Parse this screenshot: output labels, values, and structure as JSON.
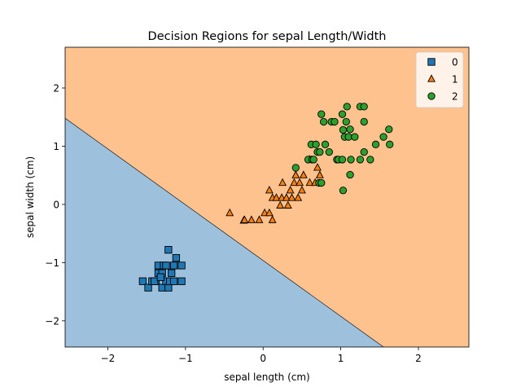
{
  "chart_data": {
    "type": "scatter",
    "title": "Decision Regions for sepal Length/Width",
    "xlabel": "sepal length (cm)",
    "ylabel": "sepal width (cm)",
    "xlim": [
      -2.55,
      2.65
    ],
    "ylim": [
      -2.45,
      2.7
    ],
    "xticks": [
      -2,
      -1,
      0,
      1,
      2
    ],
    "yticks": [
      -2,
      -1,
      0,
      1,
      2
    ],
    "grid": false,
    "legend_position": "top-right",
    "decision_boundary": [
      [
        -2.55,
        1.48
      ],
      [
        1.55,
        -2.45
      ]
    ],
    "regions": [
      {
        "class": "0",
        "color": "#9dc1dd"
      },
      {
        "class": "1",
        "color": "#fec28f"
      }
    ],
    "series": [
      {
        "name": "0",
        "marker": "square",
        "color": "#1f77b4",
        "points": [
          [
            -1.55,
            -1.32
          ],
          [
            -1.48,
            -1.43
          ],
          [
            -1.43,
            -1.32
          ],
          [
            -1.38,
            -1.32
          ],
          [
            -1.35,
            -1.05
          ],
          [
            -1.35,
            -1.18
          ],
          [
            -1.3,
            -1.43
          ],
          [
            -1.28,
            -1.05
          ],
          [
            -1.25,
            -1.32
          ],
          [
            -1.22,
            -1.43
          ],
          [
            -1.2,
            -1.32
          ],
          [
            -1.18,
            -1.18
          ],
          [
            -1.15,
            -1.05
          ],
          [
            -1.15,
            -1.32
          ],
          [
            -1.12,
            -0.92
          ],
          [
            -1.22,
            -0.78
          ],
          [
            -1.05,
            -1.05
          ],
          [
            -1.05,
            -1.32
          ],
          [
            -1.3,
            -1.18
          ],
          [
            -1.25,
            -1.05
          ],
          [
            -1.4,
            -1.32
          ],
          [
            -1.32,
            -1.25
          ]
        ]
      },
      {
        "name": "1",
        "marker": "triangle",
        "color": "#ff7f0e",
        "points": [
          [
            -0.43,
            -0.15
          ],
          [
            -0.25,
            -0.28
          ],
          [
            -0.24,
            -0.27
          ],
          [
            -0.15,
            -0.27
          ],
          [
            -0.05,
            -0.27
          ],
          [
            0.02,
            -0.15
          ],
          [
            0.08,
            -0.15
          ],
          [
            0.12,
            -0.27
          ],
          [
            0.08,
            0.24
          ],
          [
            0.12,
            0.11
          ],
          [
            0.17,
            0.11
          ],
          [
            0.22,
            -0.02
          ],
          [
            0.24,
            0.11
          ],
          [
            0.25,
            0.37
          ],
          [
            0.3,
            0.11
          ],
          [
            0.32,
            -0.02
          ],
          [
            0.35,
            0.24
          ],
          [
            0.37,
            0.11
          ],
          [
            0.4,
            0.37
          ],
          [
            0.42,
            0.5
          ],
          [
            0.45,
            0.11
          ],
          [
            0.47,
            0.37
          ],
          [
            0.5,
            0.24
          ],
          [
            0.52,
            0.5
          ],
          [
            0.6,
            0.37
          ],
          [
            0.67,
            0.37
          ],
          [
            0.7,
            0.63
          ],
          [
            0.73,
            0.5
          ],
          [
            0.6,
            0.77
          ]
        ]
      },
      {
        "name": "2",
        "marker": "circle",
        "color": "#2ca02c",
        "points": [
          [
            0.42,
            0.63
          ],
          [
            0.58,
            0.77
          ],
          [
            0.62,
            1.03
          ],
          [
            0.63,
            0.77
          ],
          [
            0.65,
            0.77
          ],
          [
            0.68,
            1.03
          ],
          [
            0.7,
            0.9
          ],
          [
            0.73,
            0.9
          ],
          [
            0.75,
            1.55
          ],
          [
            0.78,
            1.42
          ],
          [
            0.8,
            1.03
          ],
          [
            0.85,
            0.9
          ],
          [
            0.72,
            0.37
          ],
          [
            0.88,
            1.42
          ],
          [
            0.95,
            0.77
          ],
          [
            0.97,
            0.77
          ],
          [
            1.02,
            0.77
          ],
          [
            1.02,
            1.55
          ],
          [
            1.03,
            1.28
          ],
          [
            1.05,
            1.16
          ],
          [
            1.07,
            1.42
          ],
          [
            1.08,
            1.68
          ],
          [
            1.1,
            1.16
          ],
          [
            1.12,
            1.29
          ],
          [
            1.13,
            0.77
          ],
          [
            1.12,
            0.51
          ],
          [
            1.18,
            1.16
          ],
          [
            1.03,
            0.24
          ],
          [
            1.25,
            0.77
          ],
          [
            1.25,
            1.68
          ],
          [
            1.3,
            0.9
          ],
          [
            1.3,
            1.68
          ],
          [
            1.3,
            1.42
          ],
          [
            1.38,
            0.77
          ],
          [
            1.45,
            1.03
          ],
          [
            1.55,
            1.16
          ],
          [
            1.62,
            1.29
          ],
          [
            1.63,
            1.03
          ],
          [
            0.75,
            0.37
          ],
          [
            0.92,
            1.42
          ]
        ]
      }
    ]
  }
}
